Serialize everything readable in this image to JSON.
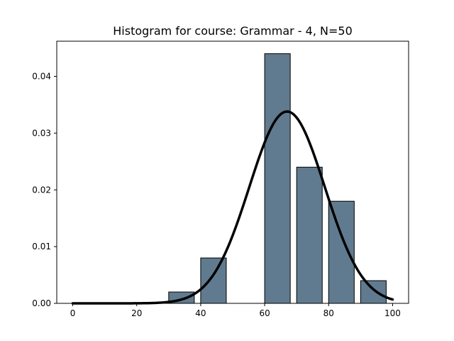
{
  "chart_data": {
    "type": "bar",
    "title": "Histogram for course: Grammar - 4,  N=50",
    "xlabel": "",
    "ylabel": "",
    "xlim": [
      -5,
      105
    ],
    "ylim": [
      0,
      0.0462
    ],
    "x_ticks": [
      0,
      20,
      40,
      60,
      80,
      100
    ],
    "y_ticks": [
      0.0,
      0.01,
      0.02,
      0.03,
      0.04
    ],
    "y_tick_labels": [
      "0.00",
      "0.01",
      "0.02",
      "0.03",
      "0.04"
    ],
    "bins": [
      {
        "start": 30,
        "end": 40,
        "value": 0.002
      },
      {
        "start": 40,
        "end": 50,
        "value": 0.008
      },
      {
        "start": 50,
        "end": 60,
        "value": 0.0
      },
      {
        "start": 60,
        "end": 70,
        "value": 0.044
      },
      {
        "start": 70,
        "end": 80,
        "value": 0.024
      },
      {
        "start": 80,
        "end": 90,
        "value": 0.018
      },
      {
        "start": 90,
        "end": 100,
        "value": 0.004
      }
    ],
    "bar_width_fraction": 0.8,
    "bar_color": "#607b8f",
    "bar_edge_color": "#000000",
    "curve": {
      "type": "normal_pdf",
      "mean": 67,
      "std": 11.8,
      "x_range": [
        0,
        100
      ],
      "color": "#000000"
    },
    "grid": false,
    "legend": "none"
  }
}
